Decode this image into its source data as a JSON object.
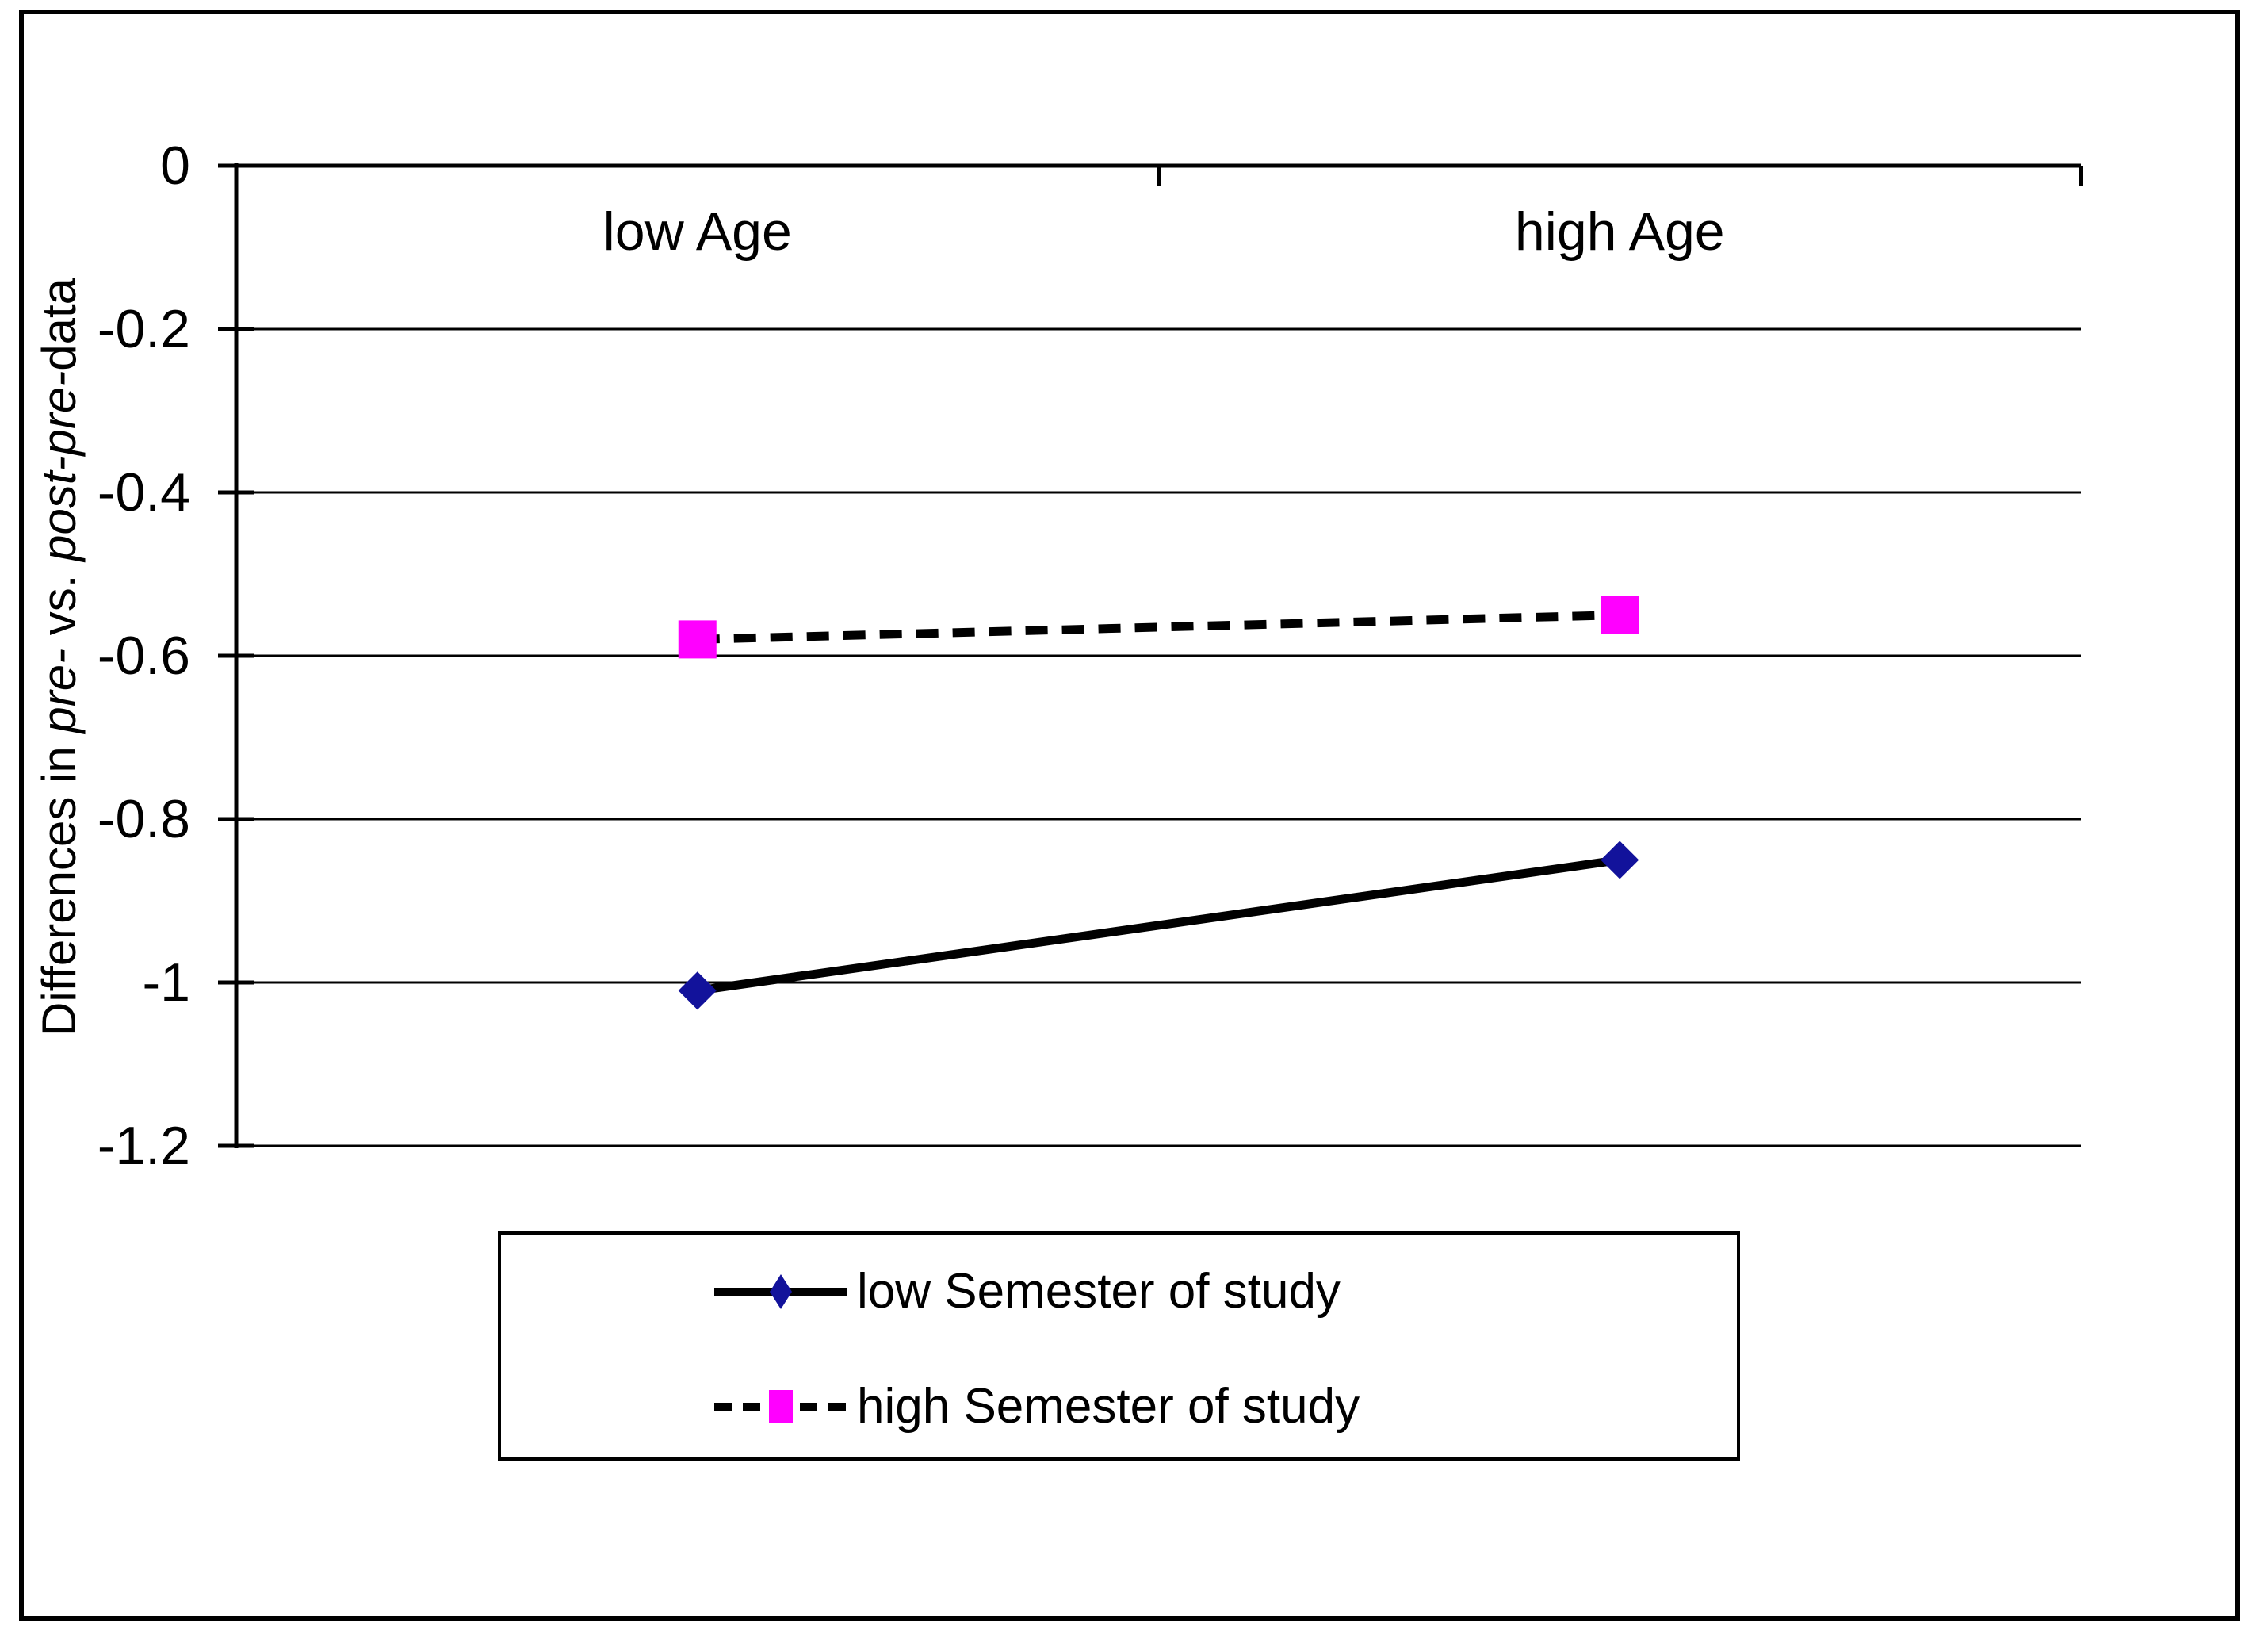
{
  "chart_data": {
    "type": "line",
    "categories": [
      "low Age",
      "high Age"
    ],
    "series": [
      {
        "name": "low Semester of study",
        "values": [
          -1.01,
          -0.85
        ],
        "line_style": "solid",
        "line_color": "#000000",
        "marker": "diamond",
        "marker_color": "#12129B"
      },
      {
        "name": "high Semester of study",
        "values": [
          -0.58,
          -0.55
        ],
        "line_style": "dashed",
        "line_color": "#000000",
        "marker": "square",
        "marker_color": "#FF00FF"
      }
    ],
    "ylabel_segments": [
      {
        "text": "Differences in ",
        "italic": false
      },
      {
        "text": "pre-",
        "italic": true
      },
      {
        "text": " vs. ",
        "italic": false
      },
      {
        "text": "post-pre-",
        "italic": true
      },
      {
        "text": "data",
        "italic": false
      }
    ],
    "yticks": [
      0,
      -0.2,
      -0.4,
      -0.6,
      -0.8,
      -1,
      -1.2
    ],
    "ytick_labels": [
      "0",
      "-0.2",
      "-0.4",
      "-0.6",
      "-0.8",
      "-1",
      "-1.2"
    ],
    "ylim": [
      0,
      -1.2
    ],
    "grid": true,
    "legend_position": "bottom-center",
    "background_color": "#FFFFFF",
    "axis_color": "#000000"
  }
}
